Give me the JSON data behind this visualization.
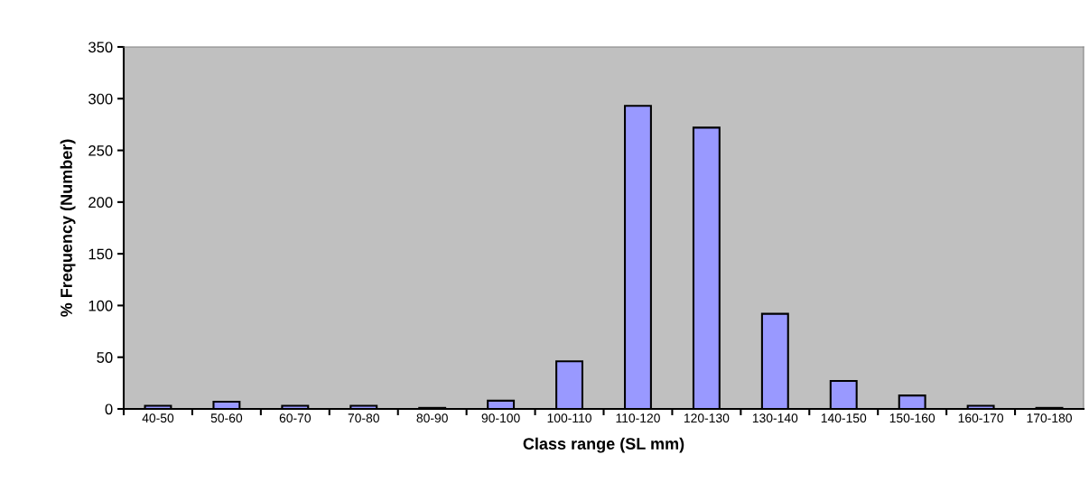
{
  "chart_data": {
    "type": "bar",
    "xlabel": "Class range (SL mm)",
    "ylabel": "% Frequency (Number)",
    "categories": [
      "40-50",
      "50-60",
      "60-70",
      "70-80",
      "80-90",
      "90-100",
      "100-110",
      "110-120",
      "120-130",
      "130-140",
      "140-150",
      "150-160",
      "160-170",
      "170-180"
    ],
    "values": [
      3,
      7,
      3,
      3,
      1,
      8,
      46,
      293,
      272,
      92,
      27,
      13,
      3,
      1
    ],
    "color": "#9999ff",
    "ylim": [
      0,
      350
    ],
    "yticks": [
      0,
      50,
      100,
      150,
      200,
      250,
      300,
      350
    ],
    "grid": false,
    "legend": false
  }
}
